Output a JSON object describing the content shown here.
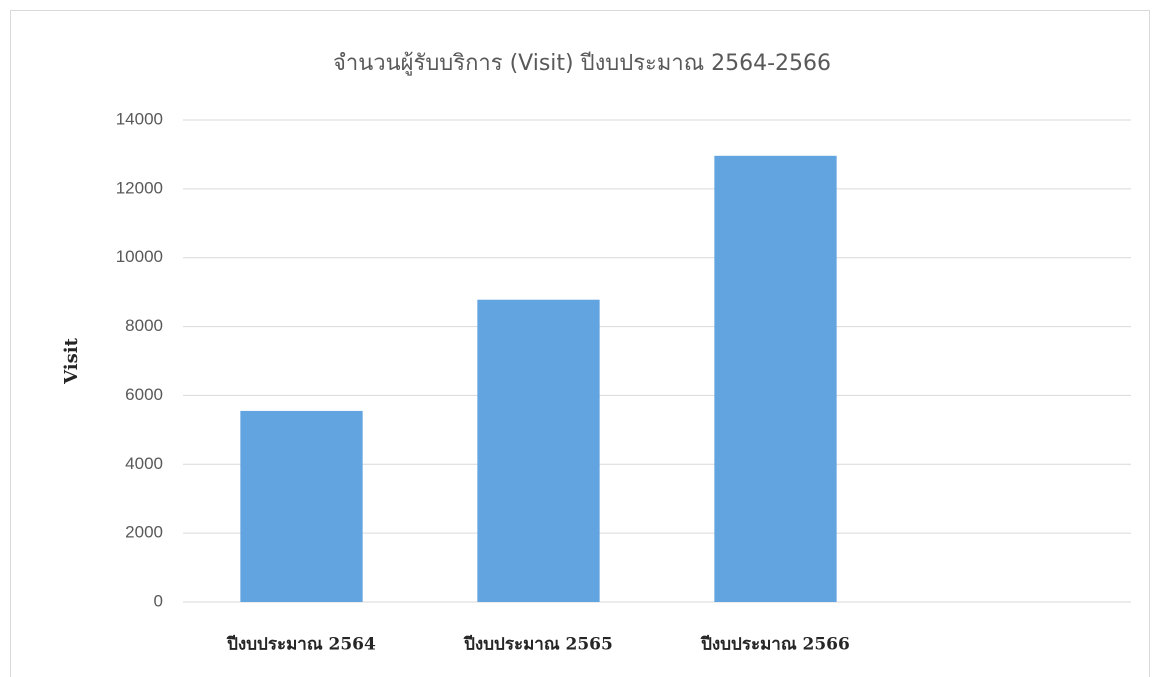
{
  "chart_data": {
    "type": "bar",
    "title": "จำนวนผู้รับบริการ (Visit) ปีงบประมาณ 2564-2566",
    "y_label": "Visit",
    "categories": [
      "ปีงบประมาณ 2564",
      "ปีงบประมาณ 2565",
      "ปีงบประมาณ 2566",
      null
    ],
    "values": [
      5550,
      8780,
      12960,
      null
    ],
    "color": "#62a4e0",
    "ylim": [
      0,
      14000
    ],
    "yticks": [
      0,
      2000,
      4000,
      6000,
      8000,
      10000,
      12000,
      14000
    ],
    "grid": true
  }
}
